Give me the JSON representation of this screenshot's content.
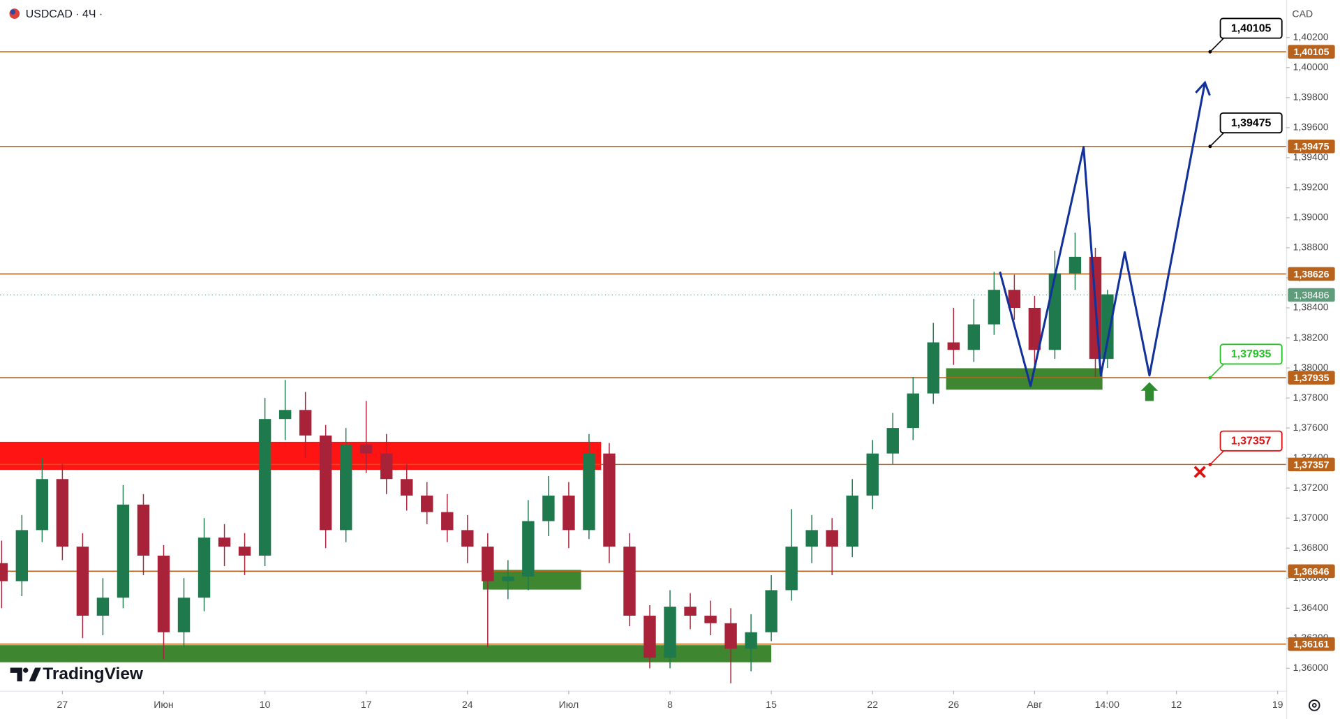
{
  "chart_data": {
    "type": "candlestick",
    "title": "USDCAD · 4Ч ·",
    "currency": "CAD",
    "watermark": "TradingView",
    "up_color": "#1e7a4c",
    "down_color": "#a8233a",
    "x": [
      -3,
      -2,
      -1,
      0,
      1,
      2,
      3,
      4,
      5,
      6,
      7,
      8,
      9,
      10,
      11,
      12,
      13,
      14,
      15,
      16,
      17,
      18,
      19,
      20,
      21,
      22,
      23,
      24,
      25,
      26,
      27,
      28,
      29,
      30,
      31,
      32,
      33,
      34,
      35,
      36,
      37,
      38,
      39,
      40,
      41,
      42,
      43,
      44,
      45,
      46,
      47,
      48,
      49,
      50,
      51,
      51.6
    ],
    "open": [
      1.367,
      1.3658,
      1.3692,
      1.3726,
      1.3681,
      1.3635,
      1.3647,
      1.3709,
      1.3675,
      1.3624,
      1.3647,
      1.3687,
      1.3681,
      1.3675,
      1.3766,
      1.3772,
      1.3755,
      1.3692,
      1.3749,
      1.3743,
      1.3726,
      1.3715,
      1.3704,
      1.3692,
      1.3681,
      1.3658,
      1.3661,
      1.3698,
      1.3715,
      1.3692,
      1.3743,
      1.3681,
      1.3635,
      1.3607,
      1.3641,
      1.3635,
      1.363,
      1.3613,
      1.3624,
      1.3652,
      1.3681,
      1.3692,
      1.3681,
      1.3715,
      1.3743,
      1.376,
      1.3783,
      1.3817,
      1.3812,
      1.3829,
      1.3852,
      1.384,
      1.3812,
      1.3863,
      1.3874,
      1.3806
    ],
    "high": [
      1.3685,
      1.3702,
      1.374,
      1.3736,
      1.369,
      1.366,
      1.3722,
      1.3716,
      1.3682,
      1.366,
      1.37,
      1.3696,
      1.369,
      1.378,
      1.3792,
      1.3784,
      1.3762,
      1.376,
      1.3778,
      1.3756,
      1.3736,
      1.3724,
      1.3716,
      1.3702,
      1.369,
      1.3672,
      1.3712,
      1.3728,
      1.3724,
      1.3756,
      1.375,
      1.369,
      1.3642,
      1.3652,
      1.365,
      1.3645,
      1.364,
      1.3636,
      1.3662,
      1.3706,
      1.3702,
      1.37,
      1.3726,
      1.3752,
      1.377,
      1.3794,
      1.383,
      1.384,
      1.3846,
      1.3864,
      1.3862,
      1.3848,
      1.3878,
      1.389,
      1.388,
      1.3852
    ],
    "low": [
      1.364,
      1.3648,
      1.3684,
      1.3672,
      1.362,
      1.3622,
      1.364,
      1.3662,
      1.3606,
      1.3614,
      1.3638,
      1.3668,
      1.3662,
      1.3668,
      1.3752,
      1.374,
      1.368,
      1.3684,
      1.373,
      1.3716,
      1.3705,
      1.3696,
      1.3684,
      1.367,
      1.3614,
      1.3646,
      1.3652,
      1.3688,
      1.368,
      1.3686,
      1.367,
      1.3628,
      1.36,
      1.36,
      1.3626,
      1.3622,
      1.359,
      1.3598,
      1.3618,
      1.3645,
      1.367,
      1.3662,
      1.3674,
      1.3706,
      1.3736,
      1.3752,
      1.3776,
      1.3802,
      1.3804,
      1.3822,
      1.3832,
      1.38,
      1.3806,
      1.3852,
      1.3794,
      1.38
    ],
    "close": [
      1.3658,
      1.3692,
      1.3726,
      1.3681,
      1.3635,
      1.3647,
      1.3709,
      1.3675,
      1.3624,
      1.3647,
      1.3687,
      1.3681,
      1.3675,
      1.3766,
      1.3772,
      1.3755,
      1.3692,
      1.3749,
      1.3743,
      1.3726,
      1.3715,
      1.3704,
      1.3692,
      1.3681,
      1.3658,
      1.3661,
      1.3698,
      1.3715,
      1.3692,
      1.3743,
      1.3681,
      1.3635,
      1.3607,
      1.3641,
      1.3635,
      1.363,
      1.3613,
      1.3624,
      1.3652,
      1.3681,
      1.3692,
      1.3681,
      1.3715,
      1.3743,
      1.376,
      1.3783,
      1.3817,
      1.3812,
      1.3829,
      1.3852,
      1.384,
      1.3812,
      1.3863,
      1.3874,
      1.3806,
      1.3849
    ],
    "xlim": [
      -3.08,
      60.42
    ],
    "xticks": [
      {
        "value": 0,
        "label": "27"
      },
      {
        "value": 5,
        "label": "Июн"
      },
      {
        "value": 10,
        "label": "10"
      },
      {
        "value": 15,
        "label": "17"
      },
      {
        "value": 20,
        "label": "24"
      },
      {
        "value": 25,
        "label": "Июл"
      },
      {
        "value": 30,
        "label": "8"
      },
      {
        "value": 35,
        "label": "15"
      },
      {
        "value": 40,
        "label": "22"
      },
      {
        "value": 44,
        "label": "26"
      },
      {
        "value": 48,
        "label": "Авг"
      },
      {
        "value": 51.58,
        "label": "14:00"
      },
      {
        "value": 55,
        "label": "12"
      },
      {
        "value": 60,
        "label": "19"
      }
    ],
    "ylim": [
      1.3585,
      1.4045
    ],
    "yticks": [
      {
        "value": 1.36,
        "label": "1,36000"
      },
      {
        "value": 1.362,
        "label": "1,36200"
      },
      {
        "value": 1.364,
        "label": "1,36400"
      },
      {
        "value": 1.366,
        "label": "1,36600"
      },
      {
        "value": 1.368,
        "label": "1,36800"
      },
      {
        "value": 1.37,
        "label": "1,37000"
      },
      {
        "value": 1.372,
        "label": "1,37200"
      },
      {
        "value": 1.374,
        "label": "1,37400"
      },
      {
        "value": 1.376,
        "label": "1,37600"
      },
      {
        "value": 1.378,
        "label": "1,37800"
      },
      {
        "value": 1.38,
        "label": "1,38000"
      },
      {
        "value": 1.382,
        "label": "1,38200"
      },
      {
        "value": 1.384,
        "label": "1,38400"
      },
      {
        "value": 1.386,
        "label": "1,38600"
      },
      {
        "value": 1.388,
        "label": "1,38800"
      },
      {
        "value": 1.39,
        "label": "1,39000"
      },
      {
        "value": 1.392,
        "label": "1,39200"
      },
      {
        "value": 1.394,
        "label": "1,39400"
      },
      {
        "value": 1.396,
        "label": "1,39600"
      },
      {
        "value": 1.398,
        "label": "1,39800"
      },
      {
        "value": 1.4,
        "label": "1,40000"
      },
      {
        "value": 1.402,
        "label": "1,40200"
      }
    ],
    "level_color": "#b8621b",
    "levels": [
      {
        "value": 1.40105,
        "label": "1,40105",
        "callout": "#000000"
      },
      {
        "value": 1.39475,
        "label": "1,39475",
        "callout": "#000000"
      },
      {
        "value": 1.38626,
        "label": "1,38626"
      },
      {
        "value": 1.37935,
        "label": "1,37935",
        "callout": "#22c322"
      },
      {
        "value": 1.37357,
        "label": "1,37357",
        "callout": "#e01010"
      },
      {
        "value": 1.36646,
        "label": "1,36646"
      },
      {
        "value": 1.36161,
        "label": "1,36161"
      }
    ],
    "current_price": {
      "value": 1.38486,
      "label": "1,38486",
      "color": "#5f9c7c"
    },
    "zones": [
      {
        "x": [
          -3.08,
          26.6
        ],
        "low": 1.37321,
        "high": 1.37508,
        "color": "#ff0000"
      },
      {
        "x": [
          -3.08,
          35.0
        ],
        "low": 1.3604,
        "high": 1.36154,
        "color": "#2e7d1e"
      },
      {
        "x": [
          20.76,
          25.61
        ],
        "low": 1.36524,
        "high": 1.36655,
        "color": "#2e7d1e"
      },
      {
        "x": [
          43.63,
          51.35
        ],
        "low": 1.37855,
        "high": 1.37998,
        "color": "#2e7d1e"
      }
    ],
    "forecast": {
      "color": "#12319a",
      "x": [
        46.29,
        47.8,
        50.42,
        51.27,
        52.45,
        53.67,
        56.41
      ],
      "values": [
        1.3864,
        1.3788,
        1.3947,
        1.3795,
        1.3877,
        1.3795,
        1.399
      ]
    }
  }
}
